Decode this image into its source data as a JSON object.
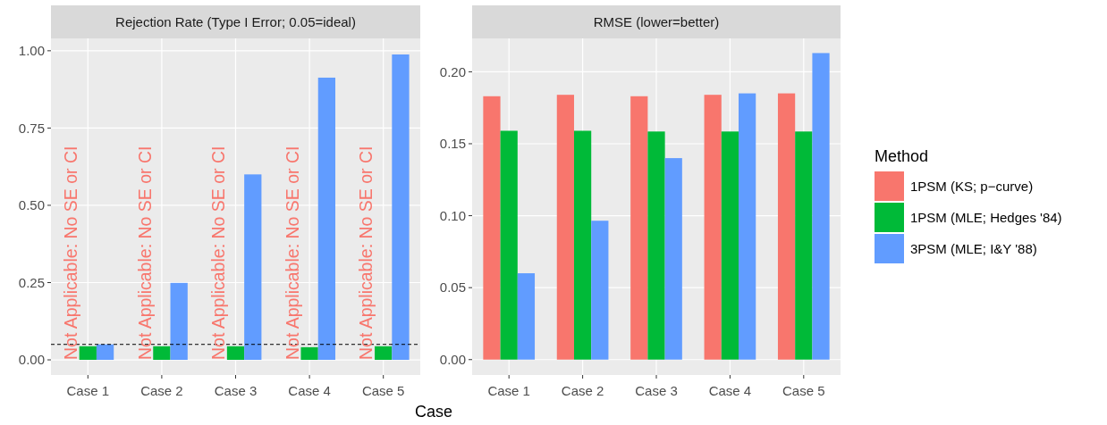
{
  "chart_data": [
    {
      "type": "bar",
      "title": "Rejection Rate (Type I Error; 0.05=ideal)",
      "categories": [
        "Case 1",
        "Case 2",
        "Case 3",
        "Case 4",
        "Case 5"
      ],
      "series": [
        {
          "color": "#f8766d",
          "values": [
            null,
            null,
            null,
            null,
            null
          ]
        },
        {
          "color": "#00ba38",
          "values": [
            0.044,
            0.044,
            0.044,
            0.041,
            0.044
          ]
        },
        {
          "color": "#619cff",
          "values": [
            0.05,
            0.249,
            0.6,
            0.913,
            0.988
          ]
        }
      ],
      "ylim": [
        -0.049,
        1.04
      ],
      "yticks": [
        {
          "value": 0,
          "label": "0.00"
        },
        {
          "value": 0.25,
          "label": "0.25"
        },
        {
          "value": 0.5,
          "label": "0.50"
        },
        {
          "value": 0.75,
          "label": "0.75"
        },
        {
          "value": 1,
          "label": "1.00"
        }
      ],
      "ref_lines": [
        {
          "axis": "y",
          "value": 0.05,
          "color": "#000000",
          "line_style": "dashed"
        }
      ],
      "annotations": [
        "Not Applicable: No SE or CI",
        "Not Applicable: No SE or CI",
        "Not Applicable: No SE or CI",
        "Not Applicable: No SE or CI",
        "Not Applicable: No SE or CI"
      ],
      "grid": true,
      "legend": false
    },
    {
      "type": "bar",
      "title": "RMSE (lower=better)",
      "xlabel": "Case",
      "legend_title": "Method",
      "categories": [
        "Case 1",
        "Case 2",
        "Case 3",
        "Case 4",
        "Case 5"
      ],
      "series": [
        {
          "name": "1PSM (KS; p−curve)",
          "color": "#f8766d",
          "values": [
            0.183,
            0.184,
            0.183,
            0.184,
            0.185
          ]
        },
        {
          "name": "1PSM (MLE; Hedges '84)",
          "color": "#00ba38",
          "values": [
            0.159,
            0.159,
            0.1585,
            0.1585,
            0.1585
          ]
        },
        {
          "name": "3PSM (MLE; I&Y '88)",
          "color": "#619cff",
          "values": [
            0.06,
            0.0965,
            0.14,
            0.185,
            0.213
          ]
        }
      ],
      "ylim": [
        -0.0107,
        0.2232
      ],
      "yticks": [
        {
          "value": 0,
          "label": "0.00"
        },
        {
          "value": 0.05,
          "label": "0.05"
        },
        {
          "value": 0.1,
          "label": "0.10"
        },
        {
          "value": 0.15,
          "label": "0.15"
        },
        {
          "value": 0.2,
          "label": "0.20"
        }
      ],
      "grid": true,
      "legend": "right"
    }
  ]
}
